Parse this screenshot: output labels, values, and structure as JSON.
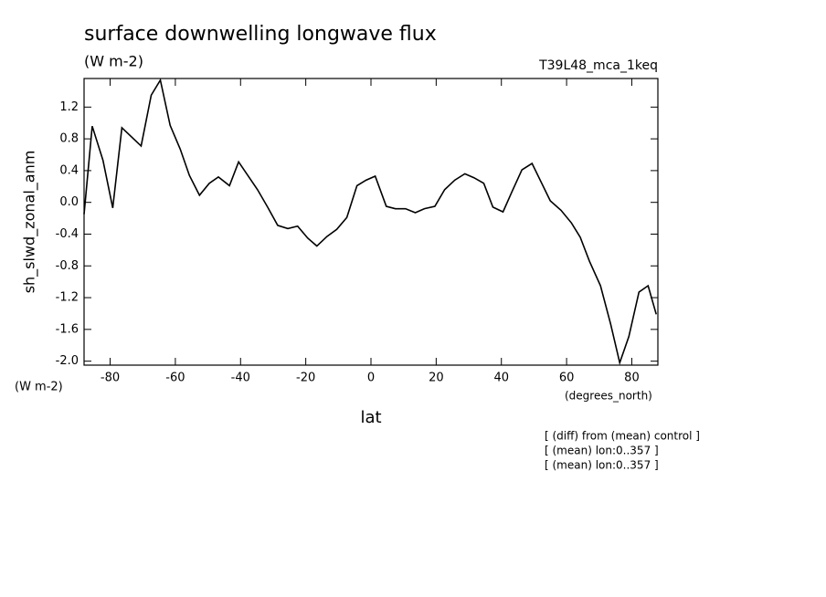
{
  "chart_data": {
    "type": "line",
    "title": "surface downwelling longwave flux",
    "subtitle": "(W m-2)",
    "run_label": "T39L48_mca_1keq",
    "y_label": "sh_slwd_zonal_anm",
    "y_units": "(W m-2)",
    "x_units": "(degrees_north)",
    "x_label": "lat",
    "notes": [
      "[ (diff) from (mean) control ]",
      "[ (mean) lon:0..357 ]",
      "[ (mean) lon:0..357 ]"
    ],
    "color": "#000000",
    "x": [
      -88,
      -85.5,
      -82.2,
      -79.2,
      -76.4,
      -70.5,
      -67.4,
      -64.6,
      -61.6,
      -58.5,
      -55.7,
      -52.6,
      -49.6,
      -46.8,
      -43.4,
      -40.6,
      -34.8,
      -31.7,
      -28.6,
      -25.5,
      -22.5,
      -19.4,
      -16.6,
      -13.5,
      -10.5,
      -7.4,
      -4.3,
      -1.5,
      1.3,
      4.7,
      7.5,
      10.6,
      13.6,
      16.4,
      19.6,
      22.6,
      25.7,
      28.8,
      31.6,
      34.6,
      37.4,
      40.5,
      43.3,
      46.3,
      49.4,
      55.0,
      58.3,
      61.5,
      64.2,
      67.0,
      70.4,
      73.5,
      76.3,
      79.1,
      82.2,
      85.0,
      87.5
    ],
    "values": [
      -0.15,
      0.96,
      0.53,
      -0.07,
      0.94,
      0.71,
      1.35,
      1.54,
      0.97,
      0.67,
      0.34,
      0.09,
      0.24,
      0.32,
      0.21,
      0.51,
      0.16,
      -0.06,
      -0.29,
      -0.33,
      -0.3,
      -0.45,
      -0.55,
      -0.43,
      -0.34,
      -0.19,
      0.21,
      0.28,
      0.33,
      -0.05,
      -0.08,
      -0.08,
      -0.13,
      -0.08,
      -0.05,
      0.16,
      0.28,
      0.36,
      0.31,
      0.24,
      -0.06,
      -0.12,
      0.14,
      0.41,
      0.49,
      0.02,
      -0.1,
      -0.26,
      -0.44,
      -0.74,
      -1.05,
      -1.53,
      -2.02,
      -1.69,
      -1.13,
      -1.05,
      -1.41
    ],
    "xlim": [
      -88,
      88
    ],
    "ylim": [
      -2.05,
      1.56
    ],
    "xticks": [
      -80,
      -60,
      -40,
      -20,
      0,
      20,
      40,
      60,
      80
    ],
    "yticks": [
      {
        "value": -2.0,
        "label": "-2.0"
      },
      -1.6,
      -1.2,
      -0.8,
      -0.4,
      {
        "value": 0,
        "label": "0.0"
      },
      0.4,
      0.8,
      1.2
    ]
  }
}
